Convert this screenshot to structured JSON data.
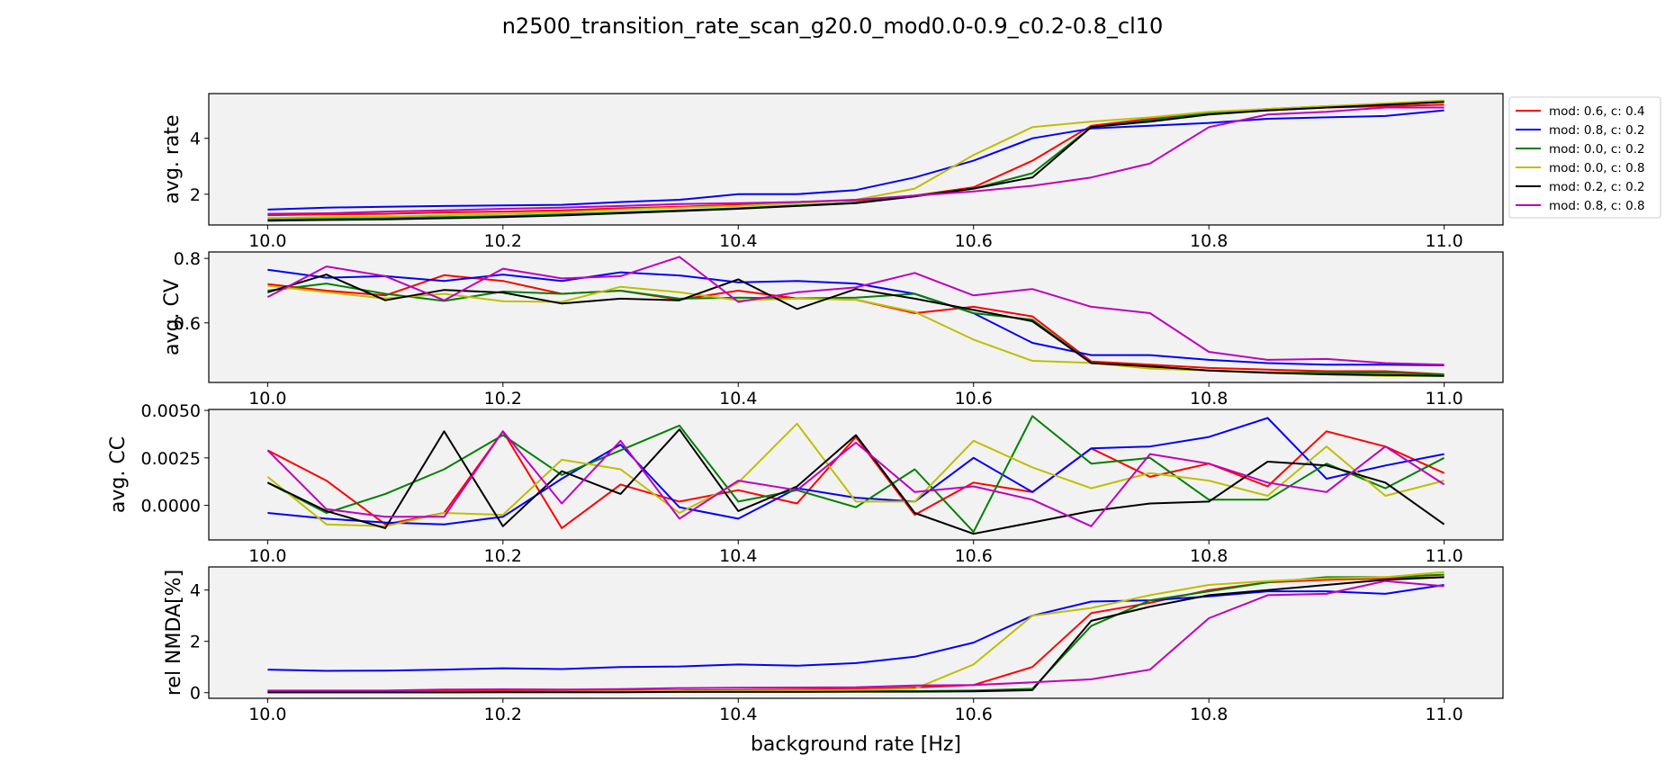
{
  "figure": {
    "title": "n2500_transition_rate_scan_g20.0_mod0.0-0.9_c0.2-0.8_cl10",
    "xlabel": "background rate [Hz]",
    "background_color": "#f2f2f2"
  },
  "legend": {
    "placement": "outside-right of top panel",
    "entries": [
      {
        "label": "mod: 0.6, c: 0.4",
        "color": "#ff0000"
      },
      {
        "label": "mod: 0.8, c: 0.2",
        "color": "#0000ff"
      },
      {
        "label": "mod: 0.0, c: 0.2",
        "color": "#008000"
      },
      {
        "label": "mod: 0.0, c: 0.8",
        "color": "#bfbf00"
      },
      {
        "label": "mod: 0.2, c: 0.2",
        "color": "#000000"
      },
      {
        "label": "mod: 0.8, c: 0.8",
        "color": "#bf00bf"
      }
    ]
  },
  "chart_data": [
    {
      "type": "line",
      "ylabel": "avg. rate",
      "x": [
        10.0,
        10.05,
        10.1,
        10.15,
        10.2,
        10.25,
        10.3,
        10.35,
        10.4,
        10.45,
        10.5,
        10.55,
        10.6,
        10.65,
        10.7,
        10.75,
        10.8,
        10.85,
        10.9,
        10.95,
        11.0
      ],
      "xlim": [
        9.95,
        11.05
      ],
      "ylim": [
        0.9,
        5.6
      ],
      "xticks": [
        "10.0",
        "10.2",
        "10.4",
        "10.6",
        "10.8",
        "11.0"
      ],
      "yticks": [
        "2",
        "4"
      ],
      "series": [
        {
          "name": "mod: 0.6, c: 0.4",
          "values": [
            1.25,
            1.28,
            1.3,
            1.35,
            1.38,
            1.42,
            1.5,
            1.55,
            1.62,
            1.72,
            1.78,
            1.95,
            2.25,
            3.2,
            4.45,
            4.7,
            4.9,
            5.0,
            5.1,
            5.15,
            5.2
          ]
        },
        {
          "name": "mod: 0.8, c: 0.2",
          "values": [
            1.45,
            1.52,
            1.55,
            1.58,
            1.6,
            1.62,
            1.72,
            1.8,
            2.0,
            2.0,
            2.15,
            2.6,
            3.2,
            4.0,
            4.35,
            4.45,
            4.55,
            4.7,
            4.75,
            4.8,
            5.0
          ]
        },
        {
          "name": "mod: 0.0, c: 0.2",
          "values": [
            1.1,
            1.12,
            1.15,
            1.18,
            1.22,
            1.28,
            1.35,
            1.42,
            1.5,
            1.6,
            1.7,
            1.95,
            2.2,
            2.75,
            4.4,
            4.65,
            4.9,
            5.05,
            5.15,
            5.2,
            5.3
          ]
        },
        {
          "name": "mod: 0.0, c: 0.8",
          "values": [
            1.15,
            1.18,
            1.2,
            1.25,
            1.3,
            1.35,
            1.45,
            1.52,
            1.58,
            1.68,
            1.8,
            2.2,
            3.4,
            4.4,
            4.6,
            4.75,
            4.95,
            5.05,
            5.15,
            5.25,
            5.35
          ]
        },
        {
          "name": "mod: 0.2, c: 0.2",
          "values": [
            1.05,
            1.08,
            1.1,
            1.14,
            1.18,
            1.24,
            1.32,
            1.4,
            1.48,
            1.58,
            1.68,
            1.92,
            2.2,
            2.6,
            4.4,
            4.6,
            4.85,
            5.0,
            5.1,
            5.2,
            5.3
          ]
        },
        {
          "name": "mod: 0.8, c: 0.8",
          "values": [
            1.3,
            1.32,
            1.38,
            1.42,
            1.48,
            1.52,
            1.58,
            1.65,
            1.68,
            1.72,
            1.8,
            1.95,
            2.1,
            2.3,
            2.6,
            3.1,
            4.4,
            4.85,
            4.95,
            5.1,
            5.1
          ]
        }
      ]
    },
    {
      "type": "line",
      "ylabel": "avg. CV",
      "x": [
        10.0,
        10.05,
        10.1,
        10.15,
        10.2,
        10.25,
        10.3,
        10.35,
        10.4,
        10.45,
        10.5,
        10.55,
        10.6,
        10.65,
        10.7,
        10.75,
        10.8,
        10.85,
        10.9,
        10.95,
        11.0
      ],
      "xlim": [
        9.95,
        11.05
      ],
      "ylim": [
        0.415,
        0.82
      ],
      "xticks": [
        "10.0",
        "10.2",
        "10.4",
        "10.6",
        "10.8",
        "11.0"
      ],
      "yticks": [
        "0.6",
        "0.8"
      ],
      "series": [
        {
          "name": "mod: 0.6, c: 0.4",
          "values": [
            0.72,
            0.7,
            0.685,
            0.748,
            0.73,
            0.69,
            0.7,
            0.672,
            0.7,
            0.676,
            0.672,
            0.63,
            0.65,
            0.62,
            0.48,
            0.47,
            0.46,
            0.455,
            0.45,
            0.45,
            0.44
          ]
        },
        {
          "name": "mod: 0.8, c: 0.2",
          "values": [
            0.765,
            0.74,
            0.745,
            0.73,
            0.75,
            0.73,
            0.757,
            0.747,
            0.726,
            0.73,
            0.722,
            0.69,
            0.63,
            0.538,
            0.5,
            0.5,
            0.485,
            0.475,
            0.47,
            0.47,
            0.468
          ]
        },
        {
          "name": "mod: 0.0, c: 0.2",
          "values": [
            0.7,
            0.722,
            0.69,
            0.668,
            0.697,
            0.69,
            0.7,
            0.675,
            0.678,
            0.676,
            0.678,
            0.69,
            0.63,
            0.61,
            0.475,
            0.463,
            0.452,
            0.447,
            0.445,
            0.445,
            0.44
          ]
        },
        {
          "name": "mod: 0.0, c: 0.8",
          "values": [
            0.715,
            0.695,
            0.676,
            0.69,
            0.667,
            0.665,
            0.712,
            0.695,
            0.67,
            0.675,
            0.672,
            0.634,
            0.548,
            0.482,
            0.476,
            0.458,
            0.452,
            0.447,
            0.44,
            0.435,
            0.435
          ]
        },
        {
          "name": "mod: 0.2, c: 0.2",
          "values": [
            0.695,
            0.75,
            0.67,
            0.702,
            0.694,
            0.66,
            0.675,
            0.67,
            0.735,
            0.643,
            0.705,
            0.675,
            0.64,
            0.605,
            0.475,
            0.465,
            0.452,
            0.445,
            0.44,
            0.438,
            0.435
          ]
        },
        {
          "name": "mod: 0.8, c: 0.8",
          "values": [
            0.68,
            0.775,
            0.745,
            0.67,
            0.768,
            0.738,
            0.745,
            0.805,
            0.665,
            0.695,
            0.71,
            0.755,
            0.685,
            0.705,
            0.65,
            0.63,
            0.51,
            0.485,
            0.488,
            0.475,
            0.47
          ]
        }
      ]
    },
    {
      "type": "line",
      "ylabel": "avg. CC",
      "x": [
        10.0,
        10.05,
        10.1,
        10.15,
        10.2,
        10.25,
        10.3,
        10.35,
        10.4,
        10.45,
        10.5,
        10.55,
        10.6,
        10.65,
        10.7,
        10.75,
        10.8,
        10.85,
        10.9,
        10.95,
        11.0
      ],
      "xlim": [
        9.95,
        11.05
      ],
      "ylim": [
        -0.00182,
        0.00505
      ],
      "xticks": [
        "10.0",
        "10.2",
        "10.4",
        "10.6",
        "10.8",
        "11.0"
      ],
      "yticks": [
        "0.0000",
        "0.0025",
        "0.0050"
      ],
      "series": [
        {
          "name": "mod: 0.6, c: 0.4",
          "values": [
            0.0029,
            0.0013,
            -0.001,
            -0.0004,
            0.0039,
            -0.0012,
            0.0011,
            0.0002,
            0.0008,
            0.0001,
            0.0036,
            -0.0005,
            0.0012,
            0.0007,
            0.003,
            0.0015,
            0.0022,
            0.001,
            0.0039,
            0.0031,
            0.0017
          ]
        },
        {
          "name": "mod: 0.8, c: 0.2",
          "values": [
            -0.0004,
            -0.0007,
            -0.0009,
            -0.001,
            -0.0006,
            0.0014,
            0.0032,
            -0.0001,
            -0.0007,
            0.0009,
            0.0004,
            0.0002,
            0.0025,
            0.0007,
            0.003,
            0.0031,
            0.0036,
            0.0046,
            0.0014,
            0.0021,
            0.0027
          ]
        },
        {
          "name": "mod: 0.0, c: 0.2",
          "values": [
            0.0012,
            -0.0004,
            0.0006,
            0.0019,
            0.0037,
            0.0016,
            0.0029,
            0.0042,
            0.0002,
            0.0008,
            -0.0001,
            0.0019,
            -0.0014,
            0.0047,
            0.0022,
            0.0025,
            0.0003,
            0.0003,
            0.0022,
            0.0009,
            0.0025
          ]
        },
        {
          "name": "mod: 0.0, c: 0.8",
          "values": [
            0.0015,
            -0.001,
            -0.0011,
            -0.0004,
            -0.0005,
            0.0024,
            0.0019,
            -0.0004,
            0.0012,
            0.0043,
            0.0002,
            0.0002,
            0.0034,
            0.002,
            0.0009,
            0.0017,
            0.0013,
            0.0005,
            0.0031,
            0.0005,
            0.0013
          ]
        },
        {
          "name": "mod: 0.2, c: 0.2",
          "values": [
            0.0012,
            -0.0003,
            -0.0012,
            0.0039,
            -0.0011,
            0.0018,
            0.0006,
            0.004,
            -0.0003,
            0.001,
            0.0037,
            -0.0004,
            -0.0015,
            -0.0009,
            -0.0003,
            0.0001,
            0.0002,
            0.0023,
            0.0021,
            0.0012,
            -0.001
          ]
        },
        {
          "name": "mod: 0.8, c: 0.8",
          "values": [
            0.0029,
            -0.0002,
            -0.0006,
            -0.0006,
            0.0039,
            0.0001,
            0.0034,
            -0.0007,
            0.0013,
            0.0008,
            0.0033,
            0.0007,
            0.001,
            0.0003,
            -0.0011,
            0.0027,
            0.0022,
            0.0012,
            0.0007,
            0.0031,
            0.0011
          ]
        }
      ]
    },
    {
      "type": "line",
      "ylabel": "rel NMDA[%]",
      "x": [
        10.0,
        10.05,
        10.1,
        10.15,
        10.2,
        10.25,
        10.3,
        10.35,
        10.4,
        10.45,
        10.5,
        10.55,
        10.6,
        10.65,
        10.7,
        10.75,
        10.8,
        10.85,
        10.9,
        10.95,
        11.0
      ],
      "xlim": [
        9.95,
        11.05
      ],
      "ylim": [
        -0.22,
        4.9
      ],
      "xticks": [
        "10.0",
        "10.2",
        "10.4",
        "10.6",
        "10.8",
        "11.0"
      ],
      "yticks": [
        "0",
        "2",
        "4"
      ],
      "series": [
        {
          "name": "mod: 0.6, c: 0.4",
          "values": [
            0.05,
            0.05,
            0.05,
            0.06,
            0.06,
            0.07,
            0.08,
            0.09,
            0.1,
            0.12,
            0.14,
            0.2,
            0.3,
            1.0,
            3.1,
            3.5,
            4.0,
            4.3,
            4.4,
            4.45,
            4.5
          ]
        },
        {
          "name": "mod: 0.8, c: 0.2",
          "values": [
            0.9,
            0.85,
            0.86,
            0.9,
            0.95,
            0.92,
            1.0,
            1.02,
            1.1,
            1.05,
            1.15,
            1.4,
            1.95,
            3.0,
            3.55,
            3.6,
            3.75,
            3.95,
            3.95,
            3.85,
            4.2
          ]
        },
        {
          "name": "mod: 0.0, c: 0.2",
          "values": [
            0.02,
            0.02,
            0.02,
            0.02,
            0.03,
            0.03,
            0.03,
            0.04,
            0.04,
            0.05,
            0.05,
            0.06,
            0.08,
            0.15,
            2.6,
            3.6,
            3.95,
            4.3,
            4.5,
            4.5,
            4.6
          ]
        },
        {
          "name": "mod: 0.0, c: 0.8",
          "values": [
            0.02,
            0.02,
            0.02,
            0.03,
            0.03,
            0.04,
            0.05,
            0.06,
            0.07,
            0.08,
            0.1,
            0.15,
            1.1,
            3.0,
            3.3,
            3.8,
            4.2,
            4.35,
            4.45,
            4.5,
            4.7
          ]
        },
        {
          "name": "mod: 0.2, c: 0.2",
          "values": [
            0.01,
            0.01,
            0.01,
            0.01,
            0.02,
            0.02,
            0.02,
            0.03,
            0.03,
            0.03,
            0.04,
            0.04,
            0.05,
            0.1,
            2.8,
            3.35,
            3.8,
            4.0,
            4.2,
            4.4,
            4.5
          ]
        },
        {
          "name": "mod: 0.8, c: 0.8",
          "values": [
            0.08,
            0.08,
            0.08,
            0.12,
            0.13,
            0.12,
            0.14,
            0.18,
            0.19,
            0.2,
            0.21,
            0.28,
            0.3,
            0.4,
            0.52,
            0.9,
            2.9,
            3.8,
            3.85,
            4.35,
            4.15
          ]
        }
      ]
    }
  ]
}
